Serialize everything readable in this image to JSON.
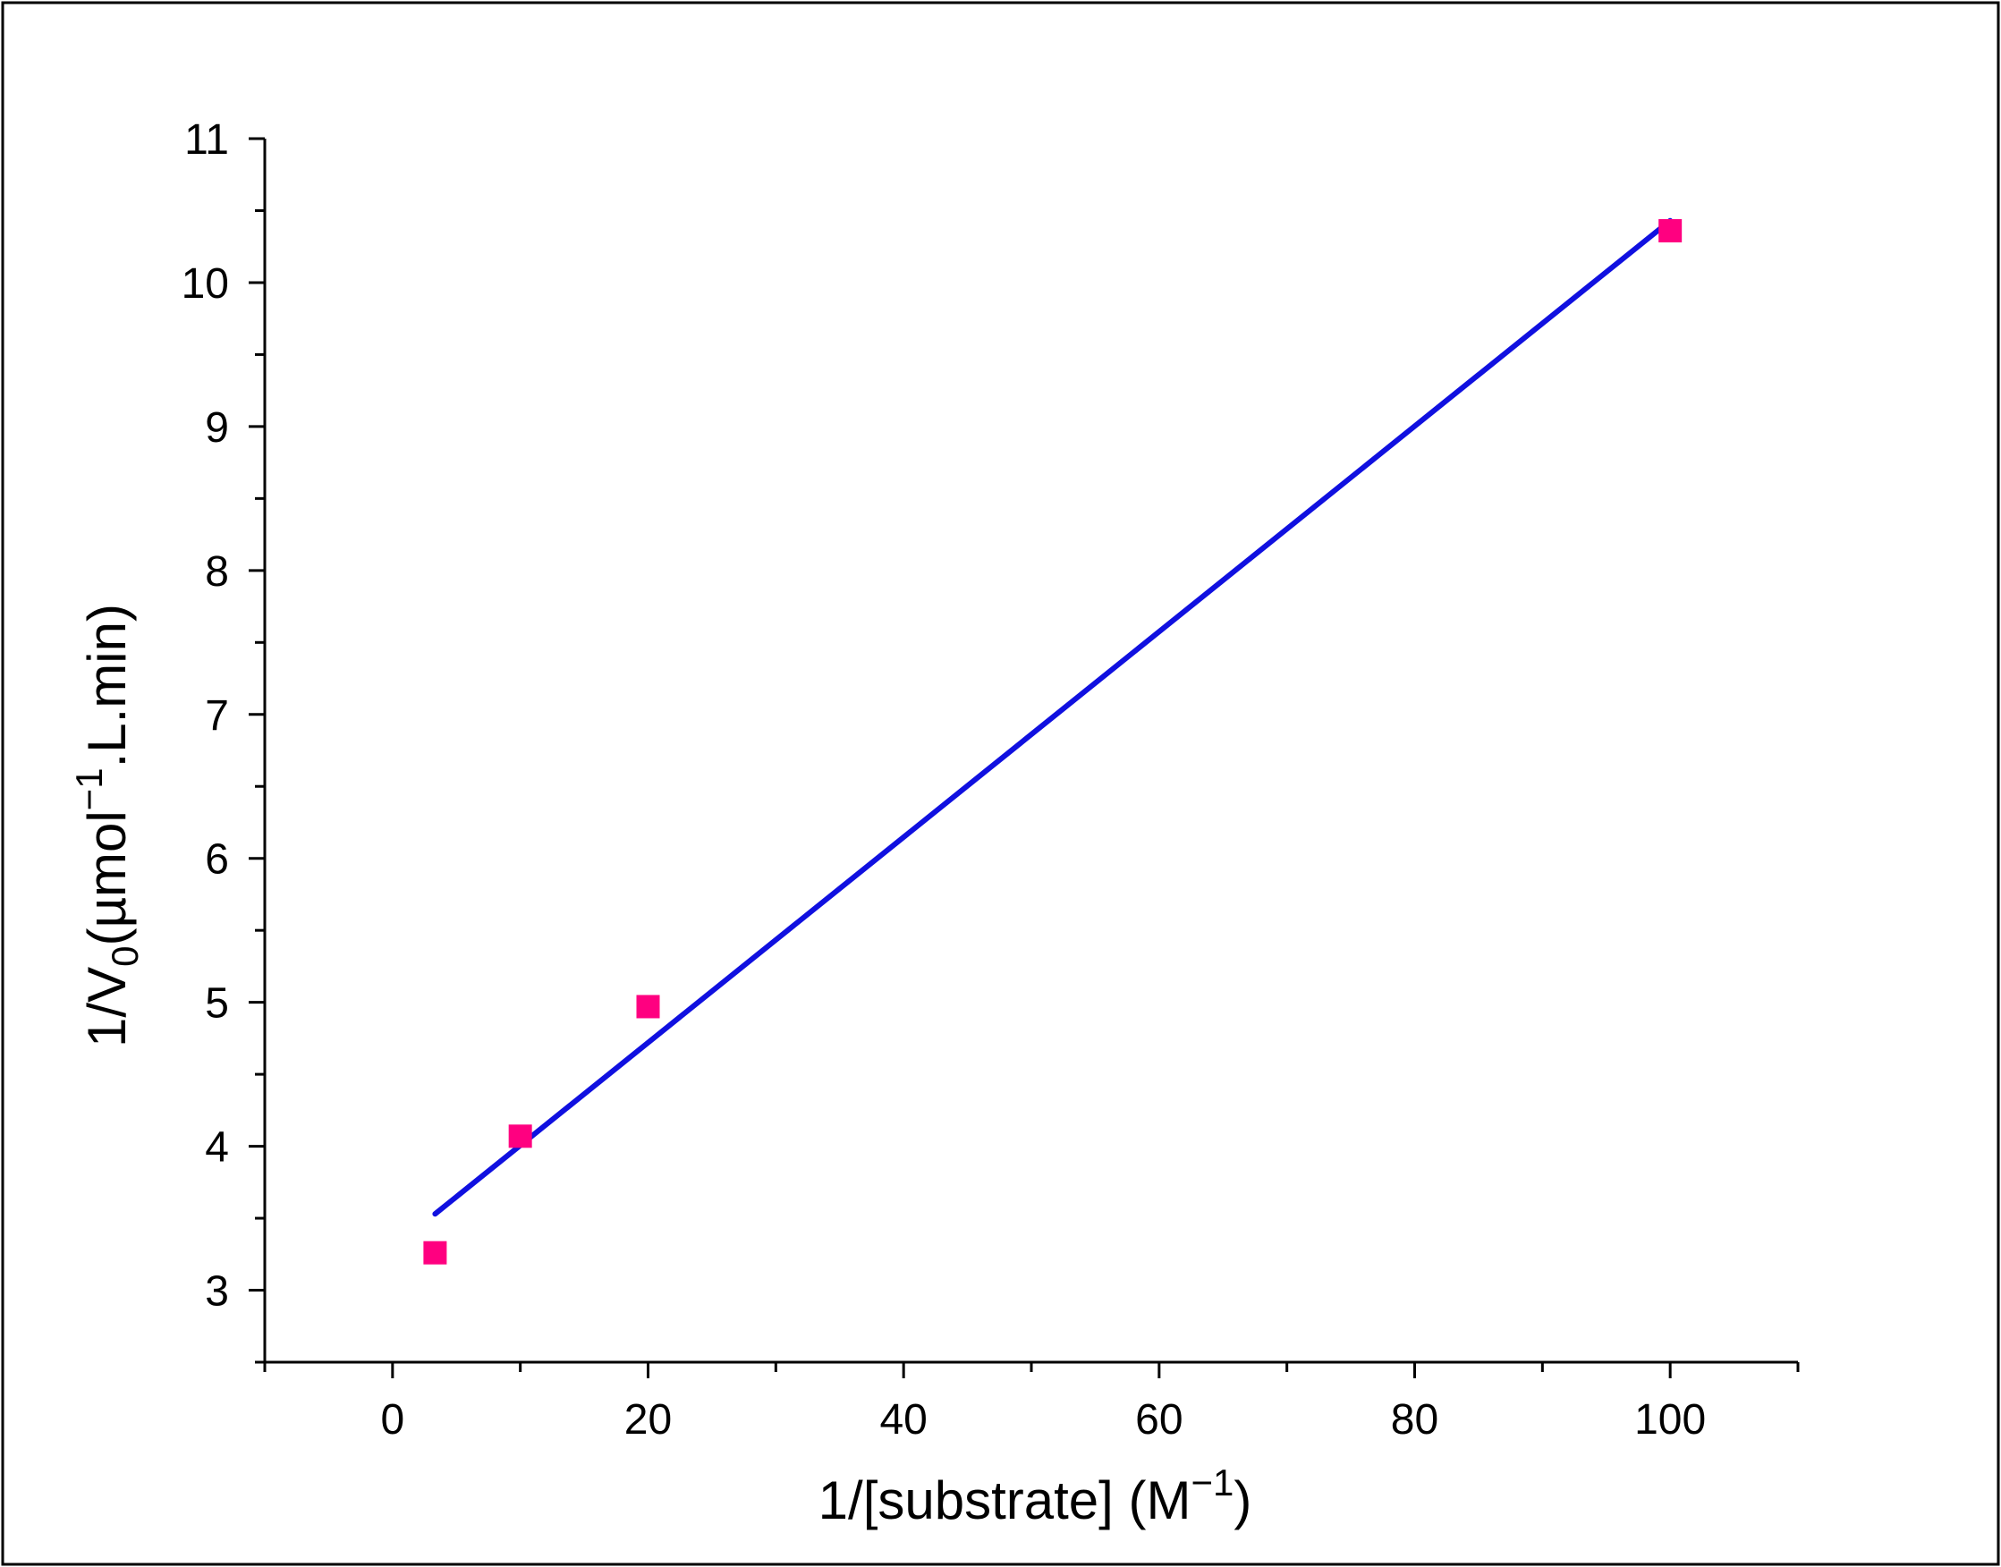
{
  "chart_data": {
    "type": "scatter",
    "title": "",
    "xlabel": {
      "prefix": "1/[substrate] (M",
      "superscript": "−1",
      "suffix": ")"
    },
    "ylabel": {
      "prefix": "1/V",
      "subscript": "0",
      "middle": "(µmol",
      "superscript": "−1",
      "suffix": ".L.min)"
    },
    "xlim": [
      -10,
      110
    ],
    "ylim": [
      2.5,
      11
    ],
    "xticks": [
      0,
      20,
      40,
      60,
      80,
      100
    ],
    "xticks_minor": [
      -10,
      10,
      30,
      50,
      70,
      90,
      110
    ],
    "yticks": [
      3,
      4,
      5,
      6,
      7,
      8,
      9,
      10,
      11
    ],
    "yticks_minor": [
      2.5,
      3.5,
      4.5,
      5.5,
      6.5,
      7.5,
      8.5,
      9.5,
      10.5
    ],
    "grid": false,
    "series": [
      {
        "kind": "scatter",
        "marker": "square",
        "color": "#ff0080",
        "points": [
          {
            "x": 3.33,
            "y": 3.26
          },
          {
            "x": 10,
            "y": 4.07
          },
          {
            "x": 20,
            "y": 4.97
          },
          {
            "x": 100,
            "y": 10.36
          }
        ]
      },
      {
        "kind": "line",
        "color": "#1010e0",
        "points": [
          {
            "x": 3.33,
            "y": 3.53
          },
          {
            "x": 100,
            "y": 10.43
          }
        ]
      }
    ]
  }
}
